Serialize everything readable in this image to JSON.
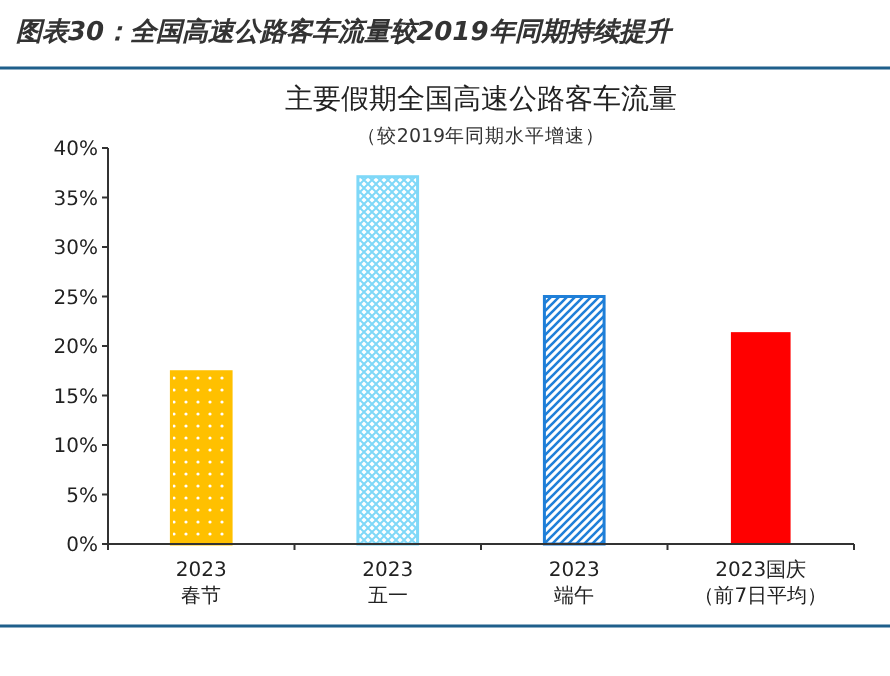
{
  "chart_data": {
    "type": "bar",
    "title": "图表30：全国高速公路客车流量较2019年同期持续提升",
    "subtitle": "主要假期全国高速公路客车流量",
    "annotations": [
      "（较2019年同期水平增速）"
    ],
    "categories": [
      "2023春节",
      "2023五一",
      "2023端午",
      "2023国庆（前7日平均）"
    ],
    "values": [
      17.4,
      37.1,
      25.0,
      21.4
    ],
    "colors": [
      "#ffc000",
      "#7fd8f8",
      "#1f7fd8",
      "#ff0000"
    ],
    "ylim": [
      0,
      40
    ],
    "yticks": [
      {
        "value": 0,
        "label": "0%"
      },
      {
        "value": 5,
        "label": "5%"
      },
      {
        "value": 10,
        "label": "10%"
      },
      {
        "value": 15,
        "label": "15%"
      },
      {
        "value": 20,
        "label": "20%"
      },
      {
        "value": 25,
        "label": "25%"
      },
      {
        "value": 30,
        "label": "30%"
      },
      {
        "value": 35,
        "label": "35%"
      },
      {
        "value": 40,
        "label": "40%"
      }
    ],
    "grid": false
  }
}
